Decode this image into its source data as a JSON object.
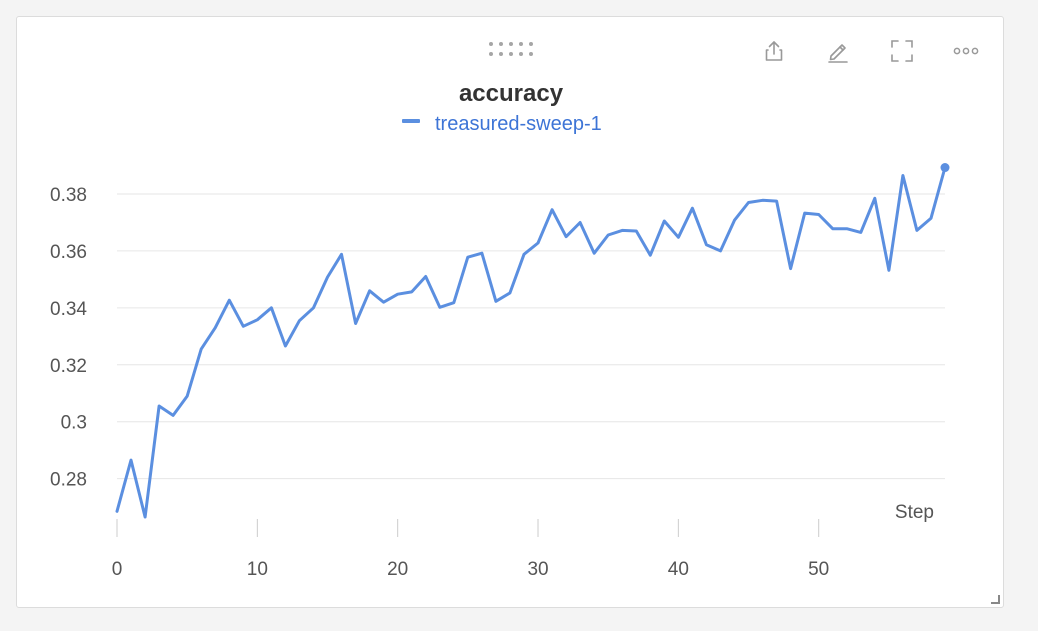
{
  "toolbar": {
    "icons": [
      "drag-handle-icon",
      "share-icon",
      "edit-icon",
      "fullscreen-icon",
      "more-icon"
    ]
  },
  "colors": {
    "series": "#5b8fe0",
    "grid": "#e6e6e6",
    "axis_text": "#555555",
    "title": "#333333",
    "legend_text": "#3d74d6",
    "icon": "#999999"
  },
  "chart_data": {
    "type": "line",
    "title": "accuracy",
    "xlabel": "Step",
    "ylabel": "",
    "legend": {
      "placement": "top-center"
    },
    "grid": true,
    "xlim": [
      0,
      59
    ],
    "ylim": [
      0.263,
      0.393
    ],
    "x_ticks": [
      0,
      10,
      20,
      30,
      40,
      50
    ],
    "y_ticks": [
      0.28,
      0.3,
      0.32,
      0.34,
      0.36,
      0.38
    ],
    "y_tick_labels": [
      "0.28",
      "0.3",
      "0.32",
      "0.34",
      "0.36",
      "0.38"
    ],
    "series": [
      {
        "name": "treasured-sweep-1",
        "x": [
          0,
          1,
          2,
          3,
          4,
          5,
          6,
          7,
          8,
          9,
          10,
          11,
          12,
          13,
          14,
          15,
          16,
          17,
          18,
          19,
          20,
          21,
          22,
          23,
          24,
          25,
          26,
          27,
          28,
          29,
          30,
          31,
          32,
          33,
          34,
          35,
          36,
          37,
          38,
          39,
          40,
          41,
          42,
          43,
          44,
          45,
          46,
          47,
          48,
          49,
          50,
          51,
          52,
          53,
          54,
          55,
          56,
          57,
          58,
          59
        ],
        "y": [
          0.2685,
          0.2865,
          0.2665,
          0.3055,
          0.3022,
          0.309,
          0.3255,
          0.333,
          0.3427,
          0.3335,
          0.3358,
          0.34,
          0.3266,
          0.3355,
          0.34,
          0.3508,
          0.3588,
          0.3345,
          0.346,
          0.342,
          0.3448,
          0.3456,
          0.351,
          0.3402,
          0.3418,
          0.3578,
          0.3592,
          0.3423,
          0.3452,
          0.3588,
          0.3628,
          0.3745,
          0.365,
          0.37,
          0.3592,
          0.3656,
          0.3672,
          0.367,
          0.3585,
          0.3705,
          0.3648,
          0.375,
          0.3622,
          0.36,
          0.3708,
          0.377,
          0.3778,
          0.3775,
          0.3538,
          0.3733,
          0.3728,
          0.3678,
          0.3678,
          0.3665,
          0.3785,
          0.3532,
          0.3865,
          0.3672,
          0.3715,
          0.3893
        ]
      }
    ]
  }
}
